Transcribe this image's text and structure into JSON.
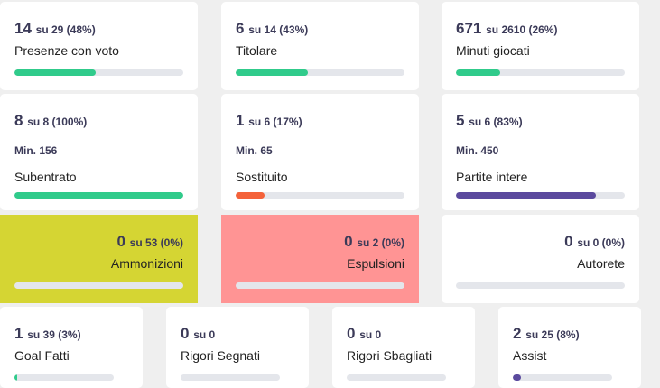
{
  "colors": {
    "green": "#30cb8b",
    "red": "#f4623a",
    "purple": "#5b4a9e",
    "yellow_bg": "#d5d533",
    "pink_bg": "#ff9494",
    "track": "#e4e6eb"
  },
  "cards": [
    {
      "value": "14",
      "rest": "su 29 (48%)",
      "label": "Presenze con voto",
      "pct": 48,
      "color": "green"
    },
    {
      "value": "6",
      "rest": "su 14 (43%)",
      "label": "Titolare",
      "pct": 43,
      "color": "green"
    },
    {
      "value": "671",
      "rest": "su 2610 (26%)",
      "label": "Minuti giocati",
      "pct": 26,
      "color": "green"
    },
    {
      "value": "8",
      "rest": "su 8 (100%)",
      "min": "Min. 156",
      "label": "Subentrato",
      "pct": 100,
      "color": "green"
    },
    {
      "value": "1",
      "rest": "su 6 (17%)",
      "min": "Min. 65",
      "label": "Sostituito",
      "pct": 17,
      "color": "red"
    },
    {
      "value": "5",
      "rest": "su 6 (83%)",
      "min": "Min. 450",
      "label": "Partite intere",
      "pct": 83,
      "color": "purple"
    },
    {
      "value": "0",
      "rest": "su 53 (0%)",
      "label": "Ammonizioni",
      "pct": 0,
      "color": "green",
      "bg": "yellow_bg"
    },
    {
      "value": "0",
      "rest": "su 2 (0%)",
      "label": "Espulsioni",
      "pct": 0,
      "color": "green",
      "bg": "pink_bg"
    },
    {
      "value": "0",
      "rest": "su 0 (0%)",
      "label": "Autorete",
      "pct": 0,
      "color": "green"
    },
    {
      "value": "1",
      "rest": "su 39 (3%)",
      "label": "Goal Fatti",
      "pct": 3,
      "color": "green"
    },
    {
      "value": "0",
      "rest": "su 0",
      "label": "Rigori Segnati",
      "pct": 0,
      "color": "green"
    },
    {
      "value": "0",
      "rest": "su 0",
      "label": "Rigori Sbagliati",
      "pct": 0,
      "color": "green"
    },
    {
      "value": "2",
      "rest": "su 25 (8%)",
      "label": "Assist",
      "pct": 8,
      "color": "purple"
    }
  ]
}
